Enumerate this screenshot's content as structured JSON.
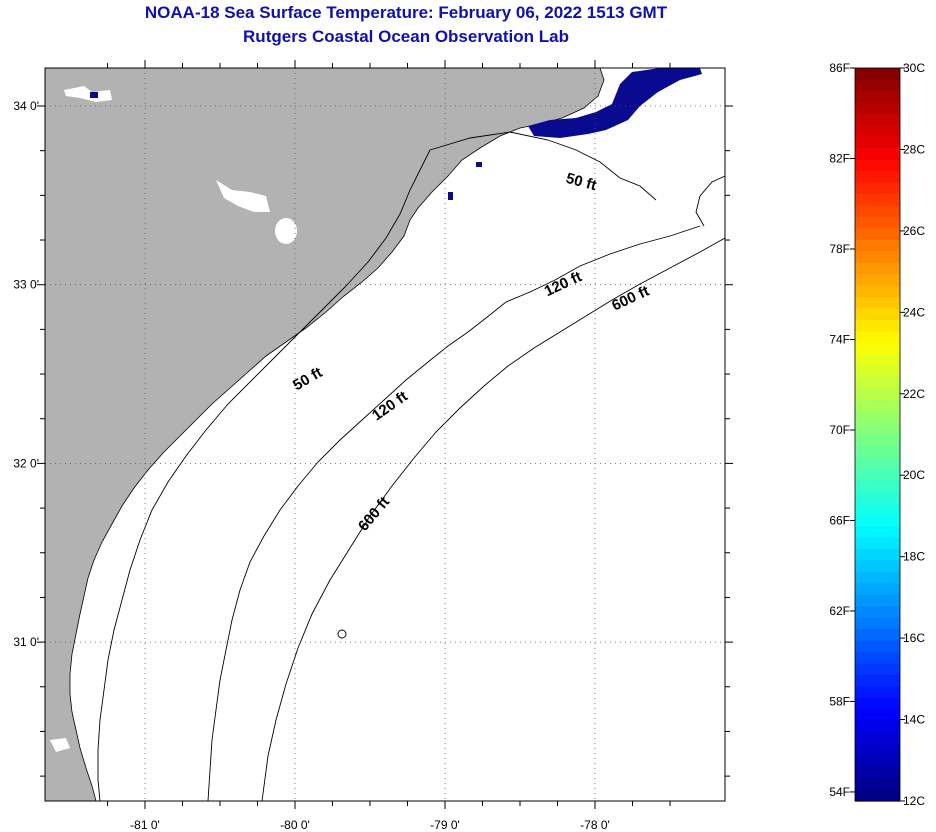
{
  "header": {
    "title": "NOAA-18 Sea Surface Temperature:  February 06, 2022 1513 GMT",
    "subtitle": "Rutgers Coastal Ocean Observation Lab"
  },
  "map": {
    "lat_ticks": [
      {
        "value": 34,
        "label": "34 0'"
      },
      {
        "value": 33,
        "label": "33 0'"
      },
      {
        "value": 32,
        "label": "32 0'"
      },
      {
        "value": 31,
        "label": "31 0'"
      }
    ],
    "lon_ticks": [
      {
        "value": -81,
        "label": "-81 0'"
      },
      {
        "value": -80,
        "label": "-80 0'"
      },
      {
        "value": -79,
        "label": "-79 0'"
      },
      {
        "value": -78,
        "label": "-78 0'"
      }
    ],
    "contour_labels": [
      {
        "text": "50 ft",
        "isobath": "50 ft",
        "lat": 33.55,
        "lon": -78.1
      },
      {
        "text": "50 ft",
        "isobath": "50 ft",
        "lat": 32.45,
        "lon": -79.9
      },
      {
        "text": "120 ft",
        "isobath": "120 ft",
        "lat": 32.3,
        "lon": -79.35
      },
      {
        "text": "120 ft",
        "isobath": "120 ft",
        "lat": 32.98,
        "lon": -78.2
      },
      {
        "text": "600 ft",
        "isobath": "600 ft",
        "lat": 32.9,
        "lon": -77.75
      },
      {
        "text": "600 ft",
        "isobath": "600 ft",
        "lat": 31.7,
        "lon": -79.45
      }
    ],
    "colors": {
      "land": "#b2b2b2",
      "ocean": "#ffffff",
      "cold_water": "#0a0a90",
      "axis": "#000000",
      "grid": "#555555"
    }
  },
  "colorbar": {
    "min_c": 12,
    "max_c": 30,
    "fahrenheit_labels": [
      "86F",
      "82F",
      "78F",
      "74F",
      "70F",
      "66F",
      "62F",
      "58F",
      "54F"
    ],
    "celsius_labels": [
      "30C",
      "28C",
      "26C",
      "24C",
      "22C",
      "20C",
      "18C",
      "16C",
      "14C",
      "12C"
    ]
  }
}
